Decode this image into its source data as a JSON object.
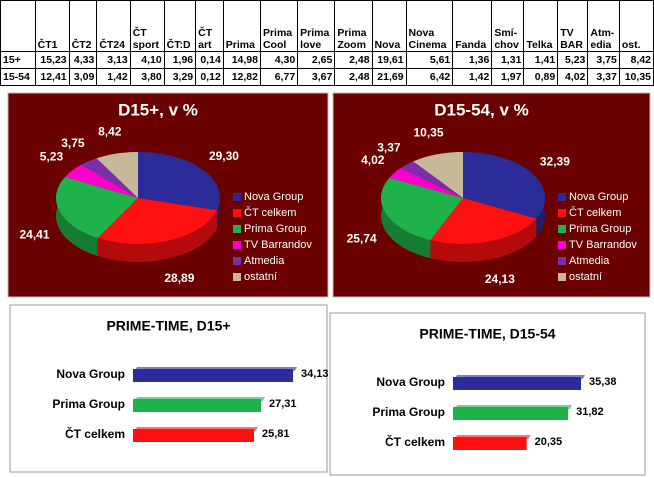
{
  "table": {
    "header": [
      "ČT1",
      "ČT2",
      "ČT24",
      "ČT\nsport",
      "ČT:D",
      "ČT\nart",
      "Prima",
      "Prima\nCool",
      "Prima\nlove",
      "Prima\nZoom",
      "Nova",
      "Nova\nCinema",
      "Fanda",
      "Smí-\nchov",
      "Telka",
      "TV\nBAR",
      "Atm-\nedia",
      "ost."
    ],
    "rows": [
      [
        "15+",
        "15,23",
        "4,33",
        "3,13",
        "4,10",
        "1,96",
        "0,14",
        "14,98",
        "4,30",
        "2,65",
        "2,48",
        "19,61",
        "5,61",
        "1,36",
        "1,31",
        "1,41",
        "5,23",
        "3,75",
        "8,42"
      ],
      [
        "15-54",
        "12,41",
        "3,09",
        "1,42",
        "3,80",
        "3,29",
        "0,12",
        "12,82",
        "6,77",
        "3,67",
        "2,48",
        "21,69",
        "6,42",
        "1,42",
        "1,97",
        "0,89",
        "4,02",
        "3,37",
        "10,35"
      ]
    ]
  },
  "chart_data": [
    {
      "type": "pie",
      "title": "D15+, v %",
      "categories": [
        "Nova Group",
        "ČT celkem",
        "Prima Group",
        "TV Barrandov",
        "Atmedia",
        "ostatní"
      ],
      "values": [
        29.3,
        28.89,
        24.41,
        5.23,
        3.75,
        8.42
      ],
      "value_labels": [
        "29,30",
        "28,89",
        "24,41",
        "5,23",
        "3,75",
        "8,42"
      ],
      "colors": [
        "#2b2b99",
        "#ff1010",
        "#1fb14a",
        "#ff00cc",
        "#7a2fa8",
        "#c7b89a"
      ]
    },
    {
      "type": "pie",
      "title": "D15-54, v %",
      "categories": [
        "Nova Group",
        "ČT celkem",
        "Prima Group",
        "TV Barrandov",
        "Atmedia",
        "ostatní"
      ],
      "values": [
        32.39,
        24.13,
        25.74,
        4.02,
        3.37,
        10.35
      ],
      "value_labels": [
        "32,39",
        "24,13",
        "25,74",
        "4,02",
        "3,37",
        "10,35"
      ],
      "colors": [
        "#2b2b99",
        "#ff1010",
        "#1fb14a",
        "#ff00cc",
        "#7a2fa8",
        "#c7b89a"
      ]
    },
    {
      "type": "bar",
      "orientation": "horizontal",
      "title": "PRIME-TIME, D15+",
      "categories": [
        "Nova Group",
        "Prima Group",
        "ČT celkem"
      ],
      "values": [
        34.13,
        27.31,
        25.81
      ],
      "value_labels": [
        "34,13",
        "27,31",
        "25,81"
      ],
      "colors": [
        "#2b2b99",
        "#1fb14a",
        "#ff1010"
      ]
    },
    {
      "type": "bar",
      "orientation": "horizontal",
      "title": "PRIME-TIME, D15-54",
      "categories": [
        "Nova Group",
        "Prima Group",
        "ČT celkem"
      ],
      "values": [
        35.38,
        31.82,
        20.35
      ],
      "value_labels": [
        "35,38",
        "31,82",
        "20,35"
      ],
      "colors": [
        "#2b2b99",
        "#1fb14a",
        "#ff1010"
      ]
    }
  ]
}
